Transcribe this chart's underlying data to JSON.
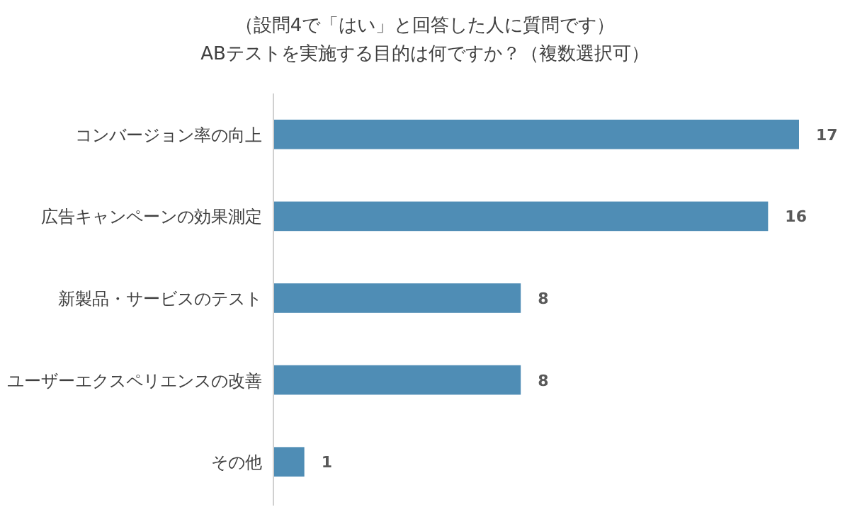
{
  "chart_data": {
    "type": "bar",
    "orientation": "horizontal",
    "title": "（設問4で「はい」と回答した人に質問です）",
    "subtitle": "ABテストを実施する目的は何ですか？（複数選択可）",
    "categories": [
      "コンバージョン率の向上",
      "広告キャンペーンの効果測定",
      "新製品・サービスのテスト",
      "ユーザーエクスペリエンスの改善",
      "その他"
    ],
    "values": [
      17,
      16,
      8,
      8,
      1
    ],
    "color": "#4f8db5",
    "data_labels": true
  }
}
